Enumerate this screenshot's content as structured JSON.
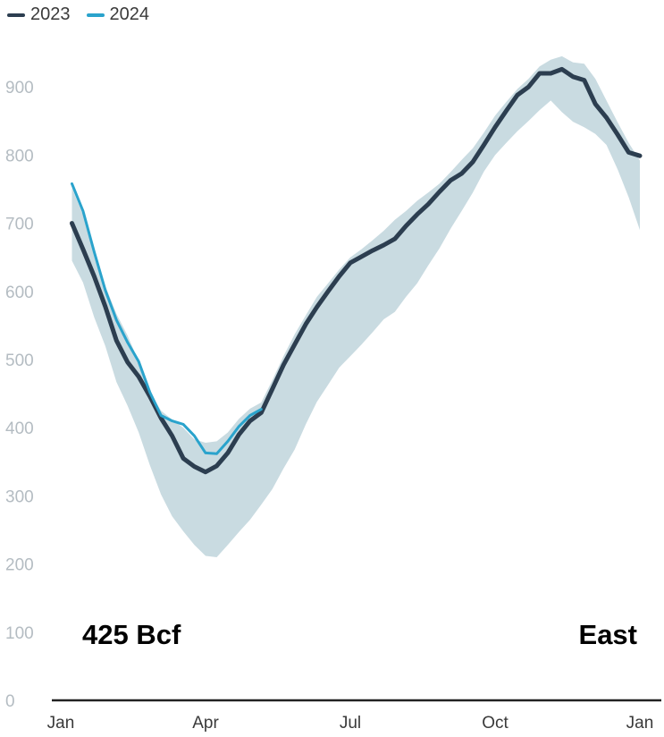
{
  "chart_data": {
    "type": "line",
    "x_unit": "week of year",
    "ylim": [
      0,
      950
    ],
    "y_ticks": [
      0,
      100,
      200,
      300,
      400,
      500,
      600,
      700,
      800,
      900
    ],
    "x_ticks": [
      {
        "label": "Jan",
        "week": 0
      },
      {
        "label": "Apr",
        "week": 13
      },
      {
        "label": "Jul",
        "week": 26
      },
      {
        "label": "Oct",
        "week": 39
      },
      {
        "label": "Jan",
        "week": 52
      }
    ],
    "grid": false,
    "legend_placement": "top-left",
    "colors": {
      "2023": "#2c3e50",
      "2024": "#2aa3cc",
      "range": "#c9dbe1",
      "axis": "#222222"
    },
    "annotations": {
      "left": "425 Bcf",
      "right": "East"
    },
    "series": [
      {
        "name": "2023",
        "x": [
          1,
          2,
          3,
          4,
          5,
          6,
          7,
          8,
          9,
          10,
          11,
          12,
          13,
          14,
          15,
          16,
          17,
          18,
          19,
          20,
          21,
          22,
          23,
          24,
          25,
          26,
          27,
          28,
          29,
          30,
          31,
          32,
          33,
          34,
          35,
          36,
          37,
          38,
          39,
          40,
          41,
          42,
          43,
          44,
          45,
          46,
          47,
          48,
          49,
          50,
          51,
          52
        ],
        "values": [
          700,
          662,
          622,
          578,
          528,
          496,
          475,
          446,
          414,
          388,
          355,
          343,
          335,
          344,
          363,
          390,
          410,
          422,
          457,
          492,
          522,
          552,
          577,
          600,
          622,
          642,
          651,
          660,
          668,
          677,
          696,
          713,
          728,
          746,
          763,
          773,
          790,
          815,
          841,
          865,
          888,
          900,
          920,
          920,
          926,
          915,
          910,
          875,
          855,
          830,
          804,
          799
        ]
      },
      {
        "name": "2024",
        "x": [
          1,
          2,
          3,
          4,
          5,
          6,
          7,
          8,
          9,
          10,
          11,
          12,
          13,
          14,
          15,
          16,
          17,
          18
        ],
        "values": [
          758,
          718,
          658,
          602,
          558,
          525,
          497,
          452,
          418,
          410,
          405,
          388,
          363,
          362,
          380,
          402,
          418,
          427
        ]
      }
    ],
    "range_band": {
      "x": [
        1,
        2,
        3,
        4,
        5,
        6,
        7,
        8,
        9,
        10,
        11,
        12,
        13,
        14,
        15,
        16,
        17,
        18,
        19,
        20,
        21,
        22,
        23,
        24,
        25,
        26,
        27,
        28,
        29,
        30,
        31,
        32,
        33,
        34,
        35,
        36,
        37,
        38,
        39,
        40,
        41,
        42,
        43,
        44,
        45,
        46,
        47,
        48,
        49,
        50,
        51,
        52
      ],
      "high": [
        752,
        712,
        660,
        608,
        567,
        535,
        497,
        452,
        425,
        412,
        400,
        383,
        378,
        380,
        393,
        413,
        428,
        437,
        470,
        505,
        537,
        565,
        592,
        612,
        632,
        650,
        662,
        675,
        689,
        705,
        718,
        733,
        745,
        758,
        775,
        793,
        810,
        833,
        858,
        878,
        897,
        912,
        930,
        940,
        945,
        936,
        934,
        912,
        880,
        848,
        818,
        792
      ],
      "low": [
        645,
        613,
        562,
        520,
        467,
        432,
        393,
        345,
        302,
        270,
        248,
        228,
        212,
        210,
        228,
        247,
        265,
        287,
        310,
        340,
        368,
        405,
        438,
        463,
        488,
        505,
        522,
        540,
        559,
        570,
        592,
        612,
        638,
        663,
        692,
        718,
        745,
        776,
        800,
        818,
        835,
        850,
        866,
        880,
        863,
        849,
        841,
        831,
        815,
        779,
        738,
        690
      ]
    }
  }
}
